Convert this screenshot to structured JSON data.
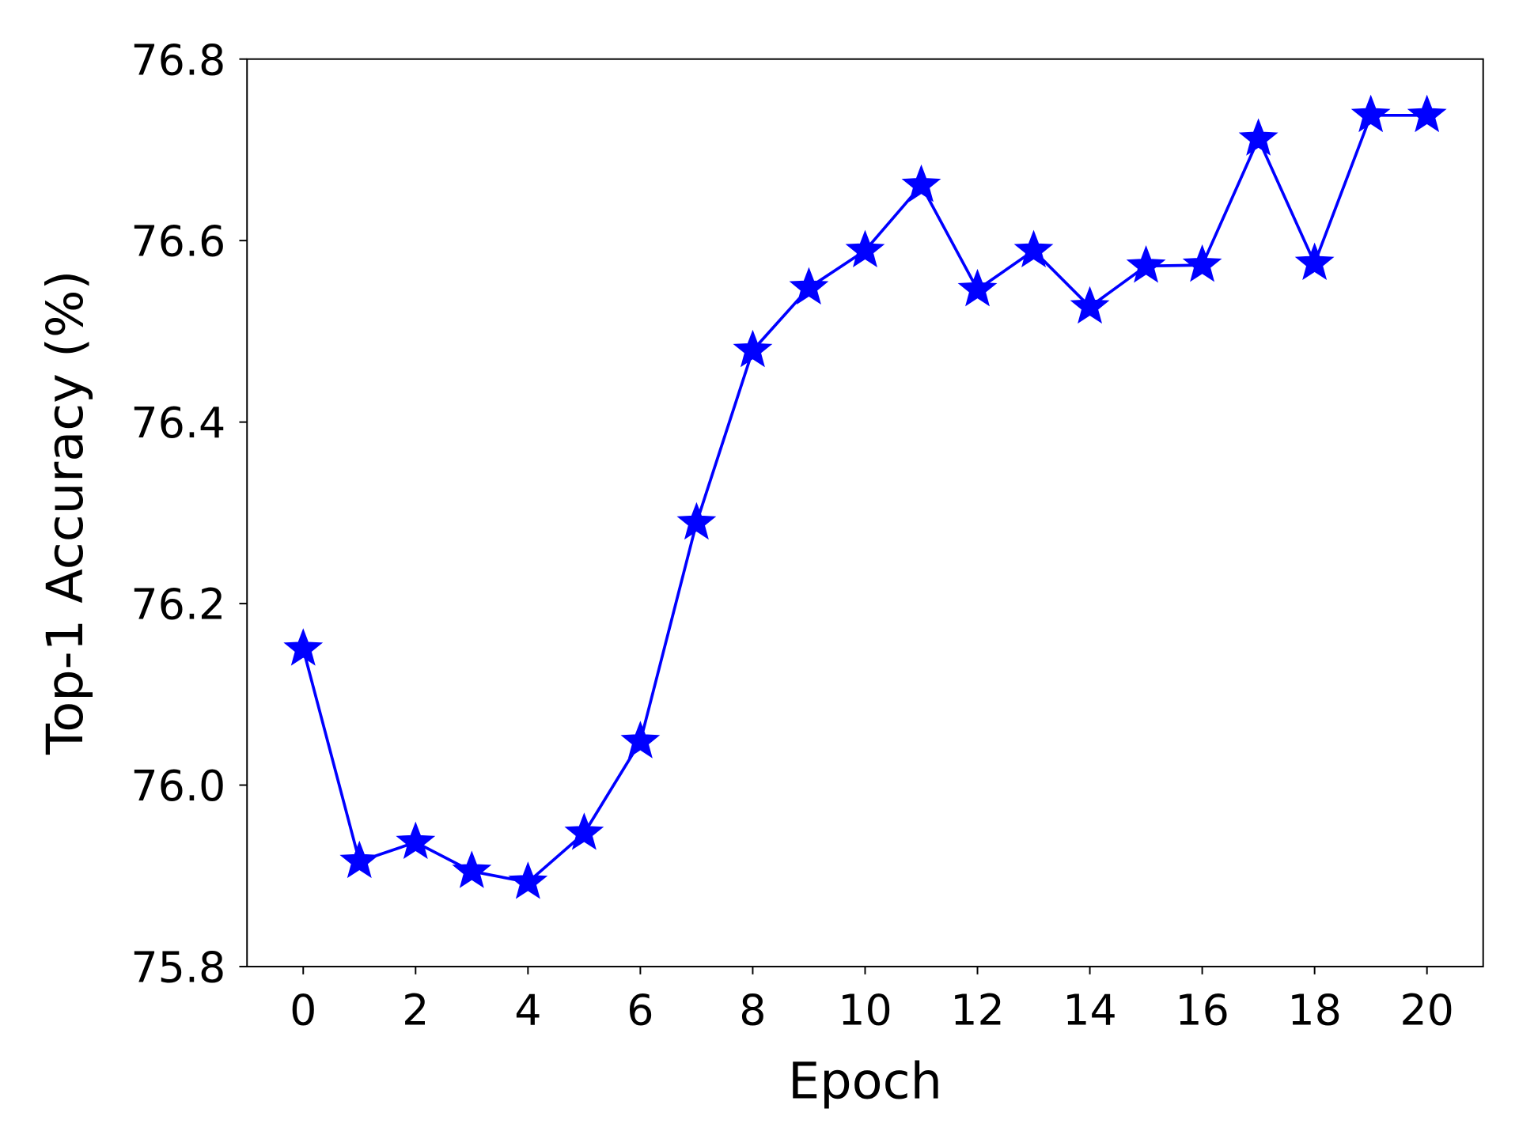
{
  "chart_data": {
    "type": "line",
    "title": "",
    "xlabel": "Epoch",
    "ylabel": "Top-1 Accuracy (%)",
    "xlim": [
      -1,
      21
    ],
    "ylim": [
      75.8,
      76.8
    ],
    "xticks": [
      0,
      2,
      4,
      6,
      8,
      10,
      12,
      14,
      16,
      18,
      20
    ],
    "xtick_labels": [
      "0",
      "2",
      "4",
      "6",
      "8",
      "10",
      "12",
      "14",
      "16",
      "18",
      "20"
    ],
    "yticks": [
      75.8,
      76.0,
      76.2,
      76.4,
      76.6,
      76.8
    ],
    "ytick_labels": [
      "75.8",
      "76.0",
      "76.2",
      "76.4",
      "76.6",
      "76.8"
    ],
    "grid": false,
    "marker": "star",
    "color": "#0000ff",
    "series": [
      {
        "x": [
          0,
          1,
          2,
          3,
          4,
          5,
          6,
          7,
          8,
          9,
          10,
          11,
          12,
          13,
          14,
          15,
          16,
          17,
          18,
          19,
          20
        ],
        "y": [
          76.15,
          75.916,
          75.937,
          75.905,
          75.893,
          75.947,
          76.048,
          76.289,
          76.479,
          76.548,
          76.589,
          76.661,
          76.546,
          76.589,
          76.527,
          76.572,
          76.573,
          76.712,
          76.575,
          76.738,
          76.738
        ]
      }
    ]
  }
}
